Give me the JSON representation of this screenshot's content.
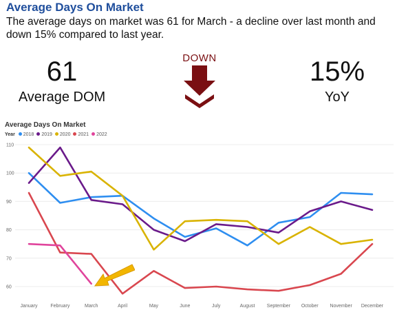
{
  "header": {
    "title": "Average Days On Market",
    "description": "The average days on market was 61 for March - a decline over last month and down 15% compared to last year."
  },
  "kpis": {
    "left_value": "61",
    "left_label": "Average DOM",
    "direction_label": "DOWN",
    "right_value": "15%",
    "right_label": "YoY"
  },
  "colors": {
    "title": "#1f4e9c",
    "down": "#7a0f12",
    "highlight_arrow": "#f2b600"
  },
  "chart_data": {
    "type": "line",
    "title": "Average Days On Market",
    "legend_title": "Year",
    "legend_position": "top-left",
    "categories": [
      "January",
      "February",
      "March",
      "April",
      "May",
      "June",
      "July",
      "August",
      "September",
      "October",
      "November",
      "December"
    ],
    "ylim": [
      55,
      110
    ],
    "yticks": [
      60,
      70,
      80,
      90,
      100,
      110
    ],
    "grid": true,
    "series": [
      {
        "name": "2018",
        "color": "#2e8ef0",
        "values": [
          100,
          89.5,
          91.5,
          92,
          84,
          77.5,
          80.5,
          74.5,
          82.5,
          84.5,
          93,
          92.5
        ]
      },
      {
        "name": "2019",
        "color": "#6a1a8a",
        "values": [
          96.5,
          109,
          90.5,
          89,
          80,
          76,
          82,
          81,
          79,
          86.5,
          90,
          87
        ]
      },
      {
        "name": "2020",
        "color": "#d9b300",
        "values": [
          109,
          99,
          100.5,
          92,
          73,
          83,
          83.5,
          83,
          75,
          81,
          75,
          76.5
        ]
      },
      {
        "name": "2021",
        "color": "#d9474f",
        "values": [
          93,
          72,
          71.5,
          57.5,
          65.5,
          59.5,
          60,
          59,
          58.5,
          60.5,
          64.5,
          75
        ]
      },
      {
        "name": "2022",
        "color": "#e0449c",
        "values": [
          75,
          74.5,
          61,
          null,
          null,
          null,
          null,
          null,
          null,
          null,
          null,
          null
        ]
      }
    ]
  }
}
